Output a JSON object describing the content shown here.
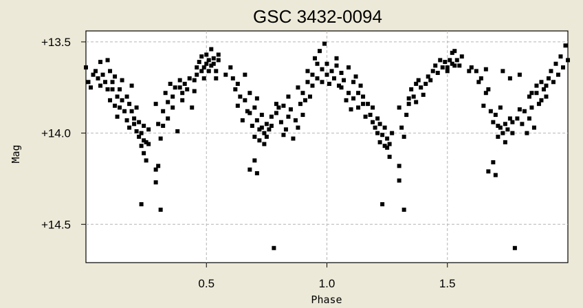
{
  "chart_data": {
    "type": "scatter",
    "title": "GSC 3432-0094",
    "xlabel": "Phase",
    "ylabel": "Mag",
    "xlim": [
      0.0,
      2.0
    ],
    "ylim_inverted": [
      13.44,
      14.71
    ],
    "x_ticks": [
      {
        "value": 0.5,
        "label": "0.5"
      },
      {
        "value": 1.0,
        "label": "1.0"
      },
      {
        "value": 1.5,
        "label": "1.5"
      }
    ],
    "y_ticks": [
      {
        "value": 13.5,
        "label": "+13.5"
      },
      {
        "value": 14.0,
        "label": "+14.0"
      },
      {
        "value": 14.5,
        "label": "+14.5"
      }
    ],
    "grid": true,
    "marker_color": "#000000",
    "series": [
      {
        "points": [
          [
            0.0,
            13.64
          ],
          [
            0.01,
            13.72
          ],
          [
            0.02,
            13.75
          ],
          [
            0.03,
            13.68
          ],
          [
            0.04,
            13.66
          ],
          [
            0.05,
            13.7
          ],
          [
            0.06,
            13.74
          ],
          [
            0.06,
            13.61
          ],
          [
            0.07,
            13.68
          ],
          [
            0.08,
            13.72
          ],
          [
            0.09,
            13.76
          ],
          [
            0.09,
            13.6
          ],
          [
            0.1,
            13.66
          ],
          [
            0.1,
            13.82
          ],
          [
            0.11,
            13.72
          ],
          [
            0.11,
            13.76
          ],
          [
            0.12,
            13.85
          ],
          [
            0.12,
            13.69
          ],
          [
            0.13,
            13.8
          ],
          [
            0.13,
            13.91
          ],
          [
            0.14,
            13.76
          ],
          [
            0.14,
            13.86
          ],
          [
            0.15,
            13.82
          ],
          [
            0.15,
            13.71
          ],
          [
            0.16,
            13.88
          ],
          [
            0.17,
            13.8
          ],
          [
            0.17,
            13.93
          ],
          [
            0.18,
            13.84
          ],
          [
            0.18,
            13.97
          ],
          [
            0.19,
            13.88
          ],
          [
            0.19,
            13.74
          ],
          [
            0.2,
            13.95
          ],
          [
            0.2,
            13.92
          ],
          [
            0.21,
            13.99
          ],
          [
            0.21,
            13.86
          ],
          [
            0.22,
            14.02
          ],
          [
            0.22,
            13.94
          ],
          [
            0.23,
            14.0
          ],
          [
            0.23,
            14.07
          ],
          [
            0.24,
            13.96
          ],
          [
            0.24,
            14.04
          ],
          [
            0.24,
            14.11
          ],
          [
            0.25,
            14.05
          ],
          [
            0.25,
            14.15
          ],
          [
            0.26,
            14.06
          ],
          [
            0.26,
            13.98
          ],
          [
            0.23,
            14.39
          ],
          [
            0.29,
            14.27
          ],
          [
            0.3,
            14.18
          ],
          [
            0.29,
            14.2
          ],
          [
            0.31,
            14.42
          ],
          [
            0.29,
            13.84
          ],
          [
            0.3,
            13.95
          ],
          [
            0.31,
            14.03
          ],
          [
            0.32,
            13.88
          ],
          [
            0.32,
            13.96
          ],
          [
            0.33,
            13.78
          ],
          [
            0.34,
            13.83
          ],
          [
            0.34,
            13.92
          ],
          [
            0.35,
            13.73
          ],
          [
            0.36,
            13.8
          ],
          [
            0.36,
            13.86
          ],
          [
            0.37,
            13.75
          ],
          [
            0.38,
            13.99
          ],
          [
            0.39,
            13.71
          ],
          [
            0.39,
            13.75
          ],
          [
            0.4,
            13.78
          ],
          [
            0.4,
            13.82
          ],
          [
            0.41,
            13.73
          ],
          [
            0.42,
            13.76
          ],
          [
            0.43,
            13.7
          ],
          [
            0.44,
            13.86
          ],
          [
            0.45,
            13.71
          ],
          [
            0.45,
            13.77
          ],
          [
            0.46,
            13.68
          ],
          [
            0.46,
            13.64
          ],
          [
            0.47,
            13.61
          ],
          [
            0.48,
            13.66
          ],
          [
            0.48,
            13.58
          ],
          [
            0.49,
            13.64
          ],
          [
            0.49,
            13.7
          ],
          [
            0.5,
            13.62
          ],
          [
            0.5,
            13.57
          ],
          [
            0.51,
            13.6
          ],
          [
            0.51,
            13.66
          ],
          [
            0.52,
            13.63
          ],
          [
            0.52,
            13.54
          ],
          [
            0.53,
            13.59
          ],
          [
            0.53,
            13.62
          ],
          [
            0.54,
            13.66
          ],
          [
            0.54,
            13.7
          ],
          [
            0.55,
            13.6
          ],
          [
            0.55,
            13.57
          ],
          [
            0.58,
            13.68
          ],
          [
            0.6,
            13.64
          ],
          [
            0.61,
            13.7
          ],
          [
            0.62,
            13.76
          ],
          [
            0.63,
            13.73
          ],
          [
            0.63,
            13.85
          ],
          [
            0.64,
            13.8
          ],
          [
            0.65,
            13.93
          ],
          [
            0.66,
            13.82
          ],
          [
            0.66,
            13.68
          ],
          [
            0.67,
            13.88
          ],
          [
            0.68,
            13.78
          ],
          [
            0.68,
            13.89
          ],
          [
            0.69,
            13.96
          ],
          [
            0.7,
            13.86
          ],
          [
            0.7,
            14.02
          ],
          [
            0.71,
            13.93
          ],
          [
            0.71,
            13.81
          ],
          [
            0.72,
            13.98
          ],
          [
            0.72,
            14.04
          ],
          [
            0.73,
            13.97
          ],
          [
            0.73,
            13.9
          ],
          [
            0.74,
            14.0
          ],
          [
            0.74,
            14.06
          ],
          [
            0.75,
            13.95
          ],
          [
            0.75,
            14.02
          ],
          [
            0.76,
            13.98
          ],
          [
            0.77,
            13.96
          ],
          [
            0.77,
            13.91
          ],
          [
            0.68,
            14.2
          ],
          [
            0.7,
            14.15
          ],
          [
            0.71,
            14.22
          ],
          [
            0.78,
            14.63
          ],
          [
            0.79,
            13.89
          ],
          [
            0.79,
            13.84
          ],
          [
            0.8,
            13.86
          ],
          [
            0.81,
            13.94
          ],
          [
            0.82,
            13.85
          ],
          [
            0.82,
            14.01
          ],
          [
            0.83,
            13.98
          ],
          [
            0.84,
            13.91
          ],
          [
            0.84,
            13.8
          ],
          [
            0.85,
            13.87
          ],
          [
            0.86,
            14.03
          ],
          [
            0.87,
            13.93
          ],
          [
            0.88,
            13.75
          ],
          [
            0.88,
            13.97
          ],
          [
            0.89,
            13.84
          ],
          [
            0.9,
            13.9
          ],
          [
            0.9,
            13.78
          ],
          [
            0.91,
            13.82
          ],
          [
            0.92,
            13.72
          ],
          [
            0.92,
            13.66
          ],
          [
            0.93,
            13.8
          ],
          [
            0.94,
            13.74
          ],
          [
            0.94,
            13.68
          ],
          [
            0.95,
            13.59
          ],
          [
            0.96,
            13.62
          ],
          [
            0.96,
            13.7
          ],
          [
            0.97,
            13.55
          ],
          [
            0.98,
            13.65
          ],
          [
            0.98,
            13.72
          ],
          [
            0.99,
            13.51
          ],
          [
            1.0,
            13.68
          ],
          [
            1.0,
            13.62
          ],
          [
            1.01,
            13.73
          ],
          [
            1.02,
            13.66
          ],
          [
            1.03,
            13.7
          ],
          [
            1.04,
            13.63
          ],
          [
            1.04,
            13.59
          ],
          [
            1.05,
            13.74
          ],
          [
            1.06,
            13.67
          ],
          [
            1.06,
            13.75
          ],
          [
            1.07,
            13.71
          ],
          [
            1.08,
            13.82
          ],
          [
            1.09,
            13.64
          ],
          [
            1.09,
            13.78
          ],
          [
            1.1,
            13.87
          ],
          [
            1.11,
            13.72
          ],
          [
            1.11,
            13.81
          ],
          [
            1.12,
            13.69
          ],
          [
            1.13,
            13.78
          ],
          [
            1.13,
            13.86
          ],
          [
            1.14,
            13.74
          ],
          [
            1.15,
            13.84
          ],
          [
            1.15,
            13.8
          ],
          [
            1.16,
            13.91
          ],
          [
            1.17,
            13.84
          ],
          [
            1.18,
            13.9
          ],
          [
            1.19,
            13.94
          ],
          [
            1.19,
            13.86
          ],
          [
            1.2,
            13.97
          ],
          [
            1.21,
            13.92
          ],
          [
            1.21,
            14.0
          ],
          [
            1.22,
            13.95
          ],
          [
            1.22,
            14.05
          ],
          [
            1.23,
            14.01
          ],
          [
            1.24,
            14.07
          ],
          [
            1.24,
            13.97
          ],
          [
            1.25,
            14.03
          ],
          [
            1.25,
            14.08
          ],
          [
            1.26,
            14.06
          ],
          [
            1.26,
            14.13
          ],
          [
            1.27,
            14.0
          ],
          [
            1.23,
            14.39
          ],
          [
            1.3,
            14.26
          ],
          [
            1.3,
            14.18
          ],
          [
            1.32,
            14.42
          ],
          [
            1.3,
            13.86
          ],
          [
            1.31,
            13.97
          ],
          [
            1.32,
            14.02
          ],
          [
            1.33,
            13.9
          ],
          [
            1.34,
            13.81
          ],
          [
            1.34,
            13.84
          ],
          [
            1.35,
            13.76
          ],
          [
            1.36,
            13.8
          ],
          [
            1.37,
            13.73
          ],
          [
            1.37,
            13.83
          ],
          [
            1.38,
            13.71
          ],
          [
            1.39,
            13.75
          ],
          [
            1.4,
            13.79
          ],
          [
            1.41,
            13.73
          ],
          [
            1.42,
            13.69
          ],
          [
            1.43,
            13.71
          ],
          [
            1.44,
            13.66
          ],
          [
            1.45,
            13.63
          ],
          [
            1.46,
            13.67
          ],
          [
            1.47,
            13.6
          ],
          [
            1.48,
            13.64
          ],
          [
            1.49,
            13.61
          ],
          [
            1.5,
            13.64
          ],
          [
            1.5,
            13.66
          ],
          [
            1.51,
            13.6
          ],
          [
            1.52,
            13.62
          ],
          [
            1.52,
            13.56
          ],
          [
            1.53,
            13.63
          ],
          [
            1.53,
            13.55
          ],
          [
            1.54,
            13.6
          ],
          [
            1.55,
            13.63
          ],
          [
            1.56,
            13.58
          ],
          [
            1.59,
            13.66
          ],
          [
            1.6,
            13.64
          ],
          [
            1.62,
            13.66
          ],
          [
            1.63,
            13.72
          ],
          [
            1.64,
            13.7
          ],
          [
            1.65,
            13.85
          ],
          [
            1.66,
            13.78
          ],
          [
            1.67,
            13.76
          ],
          [
            1.68,
            13.88
          ],
          [
            1.69,
            13.94
          ],
          [
            1.7,
            13.9
          ],
          [
            1.71,
            13.96
          ],
          [
            1.71,
            14.02
          ],
          [
            1.72,
            13.97
          ],
          [
            1.72,
            13.86
          ],
          [
            1.73,
            14.0
          ],
          [
            1.74,
            13.95
          ],
          [
            1.74,
            14.05
          ],
          [
            1.75,
            13.98
          ],
          [
            1.76,
            13.92
          ],
          [
            1.77,
            14.0
          ],
          [
            1.77,
            13.94
          ],
          [
            1.67,
            14.21
          ],
          [
            1.69,
            14.16
          ],
          [
            1.7,
            14.23
          ],
          [
            1.78,
            14.63
          ],
          [
            1.79,
            13.92
          ],
          [
            1.8,
            13.87
          ],
          [
            1.81,
            13.95
          ],
          [
            1.82,
            13.88
          ],
          [
            1.83,
            14.0
          ],
          [
            1.84,
            13.92
          ],
          [
            1.84,
            13.8
          ],
          [
            1.85,
            13.86
          ],
          [
            1.86,
            13.97
          ],
          [
            1.87,
            13.74
          ],
          [
            1.87,
            13.78
          ],
          [
            1.88,
            13.84
          ],
          [
            1.89,
            13.82
          ],
          [
            1.89,
            13.72
          ],
          [
            1.9,
            13.76
          ],
          [
            1.91,
            13.8
          ],
          [
            1.92,
            13.7
          ],
          [
            1.93,
            13.66
          ],
          [
            1.94,
            13.72
          ],
          [
            1.95,
            13.62
          ],
          [
            1.96,
            13.68
          ],
          [
            1.97,
            13.58
          ],
          [
            1.98,
            13.64
          ],
          [
            1.99,
            13.52
          ],
          [
            2.0,
            13.6
          ],
          [
            1.66,
            13.65
          ],
          [
            1.73,
            13.66
          ],
          [
            1.76,
            13.7
          ],
          [
            1.8,
            13.68
          ],
          [
            1.85,
            13.78
          ],
          [
            1.91,
            13.74
          ]
        ]
      }
    ]
  }
}
